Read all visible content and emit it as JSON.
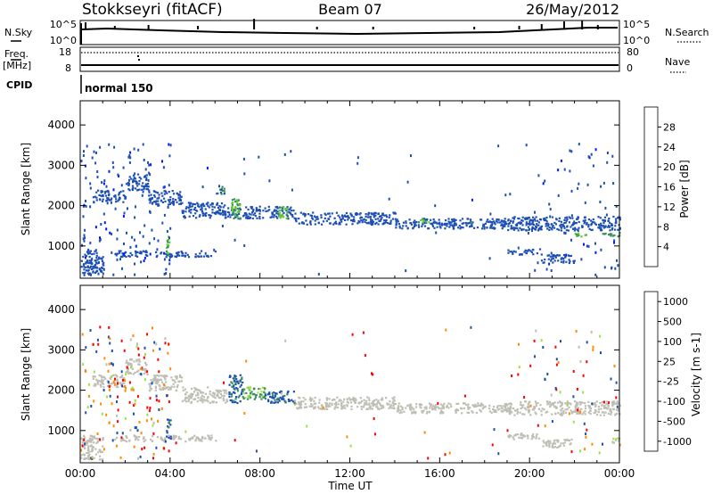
{
  "header": {
    "title": "Stokkseyri (fitACF)",
    "beam": "Beam 07",
    "date": "26/May/2012"
  },
  "summary_panels": {
    "nsky_label": "N.Sky",
    "nsky_tick_top": "10^5",
    "nsky_tick_bottom": "10^0",
    "nsearch_label": "N.Search",
    "nsearch_tick_top": "10^5",
    "nsearch_tick_bottom": "10^0",
    "freq_label_1": "Freq.",
    "freq_label_2": "[MHz]",
    "freq_tick_top": "18",
    "freq_tick_bottom": "8",
    "nave_label": "Nave",
    "nave_tick_top": "80",
    "nave_tick_bottom": "0",
    "cpid_label": "CPID",
    "cpid_text": "normal 150"
  },
  "colors": {
    "power_scale": [
      "#0018ff",
      "#1e50b4",
      "#3c8c64",
      "#5cc832",
      "#f5b400",
      "#ff7800",
      "#ff3c14",
      "#ff0000"
    ],
    "velocity_scale": [
      "#ff0000",
      "#ff4000",
      "#ff8c00",
      "#f5c800",
      "#bebeb4",
      "#a0e046",
      "#3c8c64",
      "#1e50b4"
    ],
    "velocity_neg_far": "#ff0000",
    "velocity_pos_far": "#1e3cc8",
    "ground_scatter": "#bebeb4"
  },
  "chart_data": [
    {
      "type": "heatmap",
      "name": "power",
      "ylabel": "Slant Range [km]",
      "ylim": [
        200,
        4600
      ],
      "yticks": [
        "1000",
        "2000",
        "3000",
        "4000"
      ],
      "colorbar_label": "Power [dB]",
      "colorbar_ticks": [
        "4",
        "8",
        "12",
        "16",
        "20",
        "24",
        "28"
      ],
      "bands": [
        {
          "t0": 0.0,
          "t1": 1.0,
          "r0": 300,
          "r1": 900,
          "c": 1
        },
        {
          "t0": 0.5,
          "t1": 2.0,
          "r0": 2100,
          "r1": 2400,
          "c": 1
        },
        {
          "t0": 2.0,
          "t1": 3.0,
          "r0": 2400,
          "r1": 2800,
          "c": 1
        },
        {
          "t0": 3.0,
          "t1": 4.5,
          "r0": 2000,
          "r1": 2400,
          "c": 1
        },
        {
          "t0": 4.5,
          "t1": 6.5,
          "r0": 1700,
          "r1": 2100,
          "c": 1
        },
        {
          "t0": 6.5,
          "t1": 9.5,
          "r0": 1700,
          "r1": 2000,
          "c": 1
        },
        {
          "t0": 9.5,
          "t1": 14.0,
          "r0": 1550,
          "r1": 1850,
          "c": 1
        },
        {
          "t0": 14.0,
          "t1": 19.0,
          "r0": 1450,
          "r1": 1700,
          "c": 1
        },
        {
          "t0": 19.0,
          "t1": 24.0,
          "r0": 1400,
          "r1": 1750,
          "c": 1
        },
        {
          "t0": 1.5,
          "t1": 6.0,
          "r0": 750,
          "r1": 900,
          "c": 1
        },
        {
          "t0": 19.0,
          "t1": 20.5,
          "r0": 800,
          "r1": 950,
          "c": 1
        },
        {
          "t0": 20.5,
          "t1": 22.0,
          "r0": 600,
          "r1": 800,
          "c": 1
        }
      ],
      "hot": [
        {
          "t0": 3.8,
          "t1": 4.0,
          "r0": 750,
          "r1": 1300,
          "c": 3
        },
        {
          "t0": 6.7,
          "t1": 7.1,
          "r0": 1700,
          "r1": 2200,
          "c": 3
        },
        {
          "t0": 8.8,
          "t1": 9.2,
          "r0": 1700,
          "r1": 2000,
          "c": 3
        },
        {
          "t0": 15.0,
          "t1": 15.5,
          "r0": 1600,
          "r1": 1700,
          "c": 3
        },
        {
          "t0": 17.0,
          "t1": 17.4,
          "r0": 1550,
          "r1": 1650,
          "c": 2
        },
        {
          "t0": 22.0,
          "t1": 22.6,
          "r0": 1250,
          "r1": 1350,
          "c": 3
        },
        {
          "t0": 23.2,
          "t1": 24.0,
          "r0": 1250,
          "r1": 1350,
          "c": 2
        },
        {
          "t0": 6.0,
          "t1": 6.4,
          "r0": 2300,
          "r1": 2500,
          "c": 2
        }
      ]
    },
    {
      "type": "heatmap",
      "name": "velocity",
      "ylabel": "Slant Range [km]",
      "xlabel": "Time UT",
      "xticks": [
        "00:00",
        "04:00",
        "08:00",
        "12:00",
        "16:00",
        "20:00",
        "00:00"
      ],
      "xlim": [
        0,
        24
      ],
      "ylim": [
        200,
        4600
      ],
      "yticks": [
        "1000",
        "2000",
        "3000",
        "4000"
      ],
      "colorbar_label": "Velocity [m s-1]",
      "colorbar_ticks": [
        "1000",
        "500",
        "100",
        "25",
        "-25",
        "-100",
        "-500",
        "-1000"
      ],
      "bands": [
        {
          "t0": 0.0,
          "t1": 1.0,
          "r0": 300,
          "r1": 900,
          "c": 4
        },
        {
          "t0": 0.5,
          "t1": 2.0,
          "r0": 2100,
          "r1": 2400,
          "c": 4
        },
        {
          "t0": 2.0,
          "t1": 3.0,
          "r0": 2400,
          "r1": 2800,
          "c": 4
        },
        {
          "t0": 3.0,
          "t1": 4.5,
          "r0": 2000,
          "r1": 2400,
          "c": 4
        },
        {
          "t0": 4.5,
          "t1": 6.5,
          "r0": 1700,
          "r1": 2100,
          "c": 4
        },
        {
          "t0": 9.5,
          "t1": 14.0,
          "r0": 1550,
          "r1": 1850,
          "c": 4
        },
        {
          "t0": 14.0,
          "t1": 19.0,
          "r0": 1450,
          "r1": 1700,
          "c": 4
        },
        {
          "t0": 19.0,
          "t1": 24.0,
          "r0": 1400,
          "r1": 1750,
          "c": 4
        },
        {
          "t0": 1.5,
          "t1": 6.0,
          "r0": 750,
          "r1": 900,
          "c": 4
        },
        {
          "t0": 19.0,
          "t1": 20.5,
          "r0": 800,
          "r1": 950,
          "c": 4
        },
        {
          "t0": 20.5,
          "t1": 22.0,
          "r0": 600,
          "r1": 800,
          "c": 4
        }
      ],
      "hot": [
        {
          "t0": 6.6,
          "t1": 7.2,
          "r0": 1700,
          "r1": 2400,
          "c": 7
        },
        {
          "t0": 7.2,
          "t1": 8.2,
          "r0": 1800,
          "r1": 2100,
          "c": 6
        },
        {
          "t0": 8.2,
          "t1": 9.5,
          "r0": 1700,
          "r1": 2000,
          "c": 7
        },
        {
          "t0": 3.8,
          "t1": 4.0,
          "r0": 800,
          "r1": 1300,
          "c": 7
        },
        {
          "t0": 23.6,
          "t1": 24.0,
          "r0": 700,
          "r1": 850,
          "c": 5
        }
      ]
    }
  ]
}
